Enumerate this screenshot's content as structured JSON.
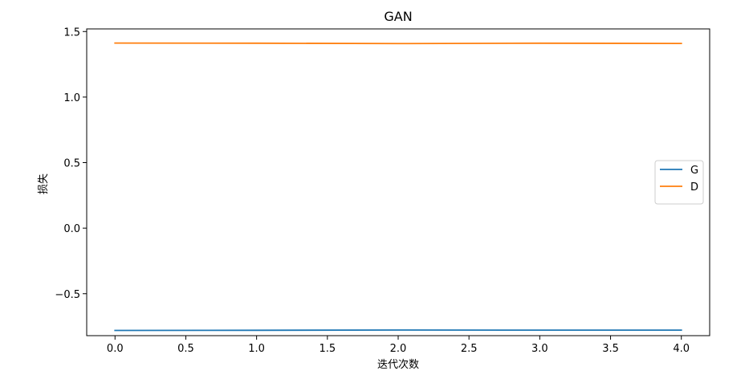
{
  "chart_data": {
    "type": "line",
    "title": "GAN",
    "xlabel": "迭代次数",
    "ylabel": "损失",
    "xlim": [
      -0.2,
      4.2
    ],
    "ylim": [
      -0.82,
      1.52
    ],
    "xticks": [
      "0.0",
      "0.5",
      "1.0",
      "1.5",
      "2.0",
      "2.5",
      "3.0",
      "3.5",
      "4.0"
    ],
    "yticks": [
      "−0.5",
      "0.0",
      "0.5",
      "1.0",
      "1.5"
    ],
    "legend_position": "center-right",
    "grid": false,
    "x": [
      0,
      1,
      2,
      3,
      4
    ],
    "series": [
      {
        "name": "G",
        "color": "#1f77b4",
        "values": [
          -0.78,
          -0.779,
          -0.777,
          -0.778,
          -0.778
        ]
      },
      {
        "name": "D",
        "color": "#ff7f0e",
        "values": [
          1.412,
          1.411,
          1.408,
          1.411,
          1.409
        ]
      }
    ]
  }
}
